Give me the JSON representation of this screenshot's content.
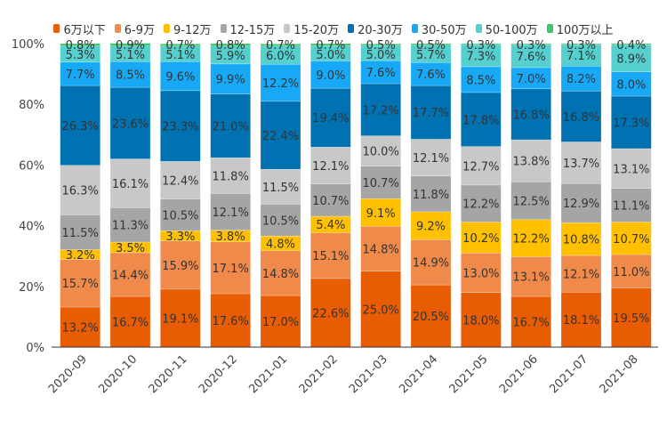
{
  "chart_data": {
    "type": "bar",
    "stacked": true,
    "normalized": true,
    "title": "",
    "xlabel": "",
    "ylabel": "",
    "ylim": [
      0,
      100
    ],
    "yticks": [
      "0%",
      "20%",
      "40%",
      "60%",
      "80%",
      "100%"
    ],
    "ytick_values": [
      0,
      20,
      40,
      60,
      80,
      100
    ],
    "grid": false,
    "legend_position": "top-center",
    "categories": [
      "2020-09",
      "2020-10",
      "2020-11",
      "2020-12",
      "2021-01",
      "2021-02",
      "2021-03",
      "2021-04",
      "2021-05",
      "2021-06",
      "2021-07",
      "2021-08"
    ],
    "series": [
      {
        "name": "6万以下",
        "color": "#E85D04",
        "values": [
          13.2,
          16.7,
          19.1,
          17.6,
          17.0,
          22.6,
          25.0,
          20.5,
          18.0,
          16.7,
          18.1,
          19.5
        ]
      },
      {
        "name": "6-9万",
        "color": "#F08A4B",
        "values": [
          15.7,
          14.4,
          15.9,
          17.1,
          14.8,
          15.1,
          14.8,
          14.9,
          13.0,
          13.1,
          12.1,
          11.0
        ]
      },
      {
        "name": "9-12万",
        "color": "#FFC000",
        "values": [
          3.2,
          3.5,
          3.3,
          3.8,
          4.8,
          5.4,
          9.1,
          9.2,
          10.2,
          12.2,
          10.8,
          10.7
        ]
      },
      {
        "name": "12-15万",
        "color": "#A5A5A5",
        "values": [
          11.5,
          11.3,
          10.5,
          12.1,
          10.5,
          10.7,
          10.7,
          11.8,
          12.2,
          12.5,
          12.9,
          11.1
        ]
      },
      {
        "name": "15-20万",
        "color": "#C8C8C8",
        "values": [
          16.3,
          16.1,
          12.4,
          11.8,
          11.5,
          12.1,
          10.0,
          12.1,
          12.7,
          13.8,
          13.7,
          13.1
        ]
      },
      {
        "name": "20-30万",
        "color": "#0072B2",
        "values": [
          26.3,
          23.6,
          23.3,
          21.0,
          22.4,
          19.4,
          17.2,
          17.7,
          17.8,
          16.8,
          16.8,
          17.3
        ]
      },
      {
        "name": "30-50万",
        "color": "#17A9F5",
        "values": [
          7.7,
          8.5,
          9.6,
          9.9,
          12.2,
          9.0,
          7.6,
          7.6,
          8.5,
          7.0,
          8.2,
          8.0
        ]
      },
      {
        "name": "50-100万",
        "color": "#56CFCF",
        "values": [
          5.3,
          5.1,
          5.1,
          5.9,
          6.0,
          5.0,
          5.0,
          5.7,
          7.3,
          7.6,
          7.1,
          8.9
        ]
      },
      {
        "name": "100万以上",
        "color": "#3CC66E",
        "values": [
          0.8,
          0.9,
          0.7,
          0.8,
          0.7,
          0.7,
          0.5,
          0.5,
          0.3,
          0.3,
          0.3,
          0.4
        ]
      }
    ]
  }
}
